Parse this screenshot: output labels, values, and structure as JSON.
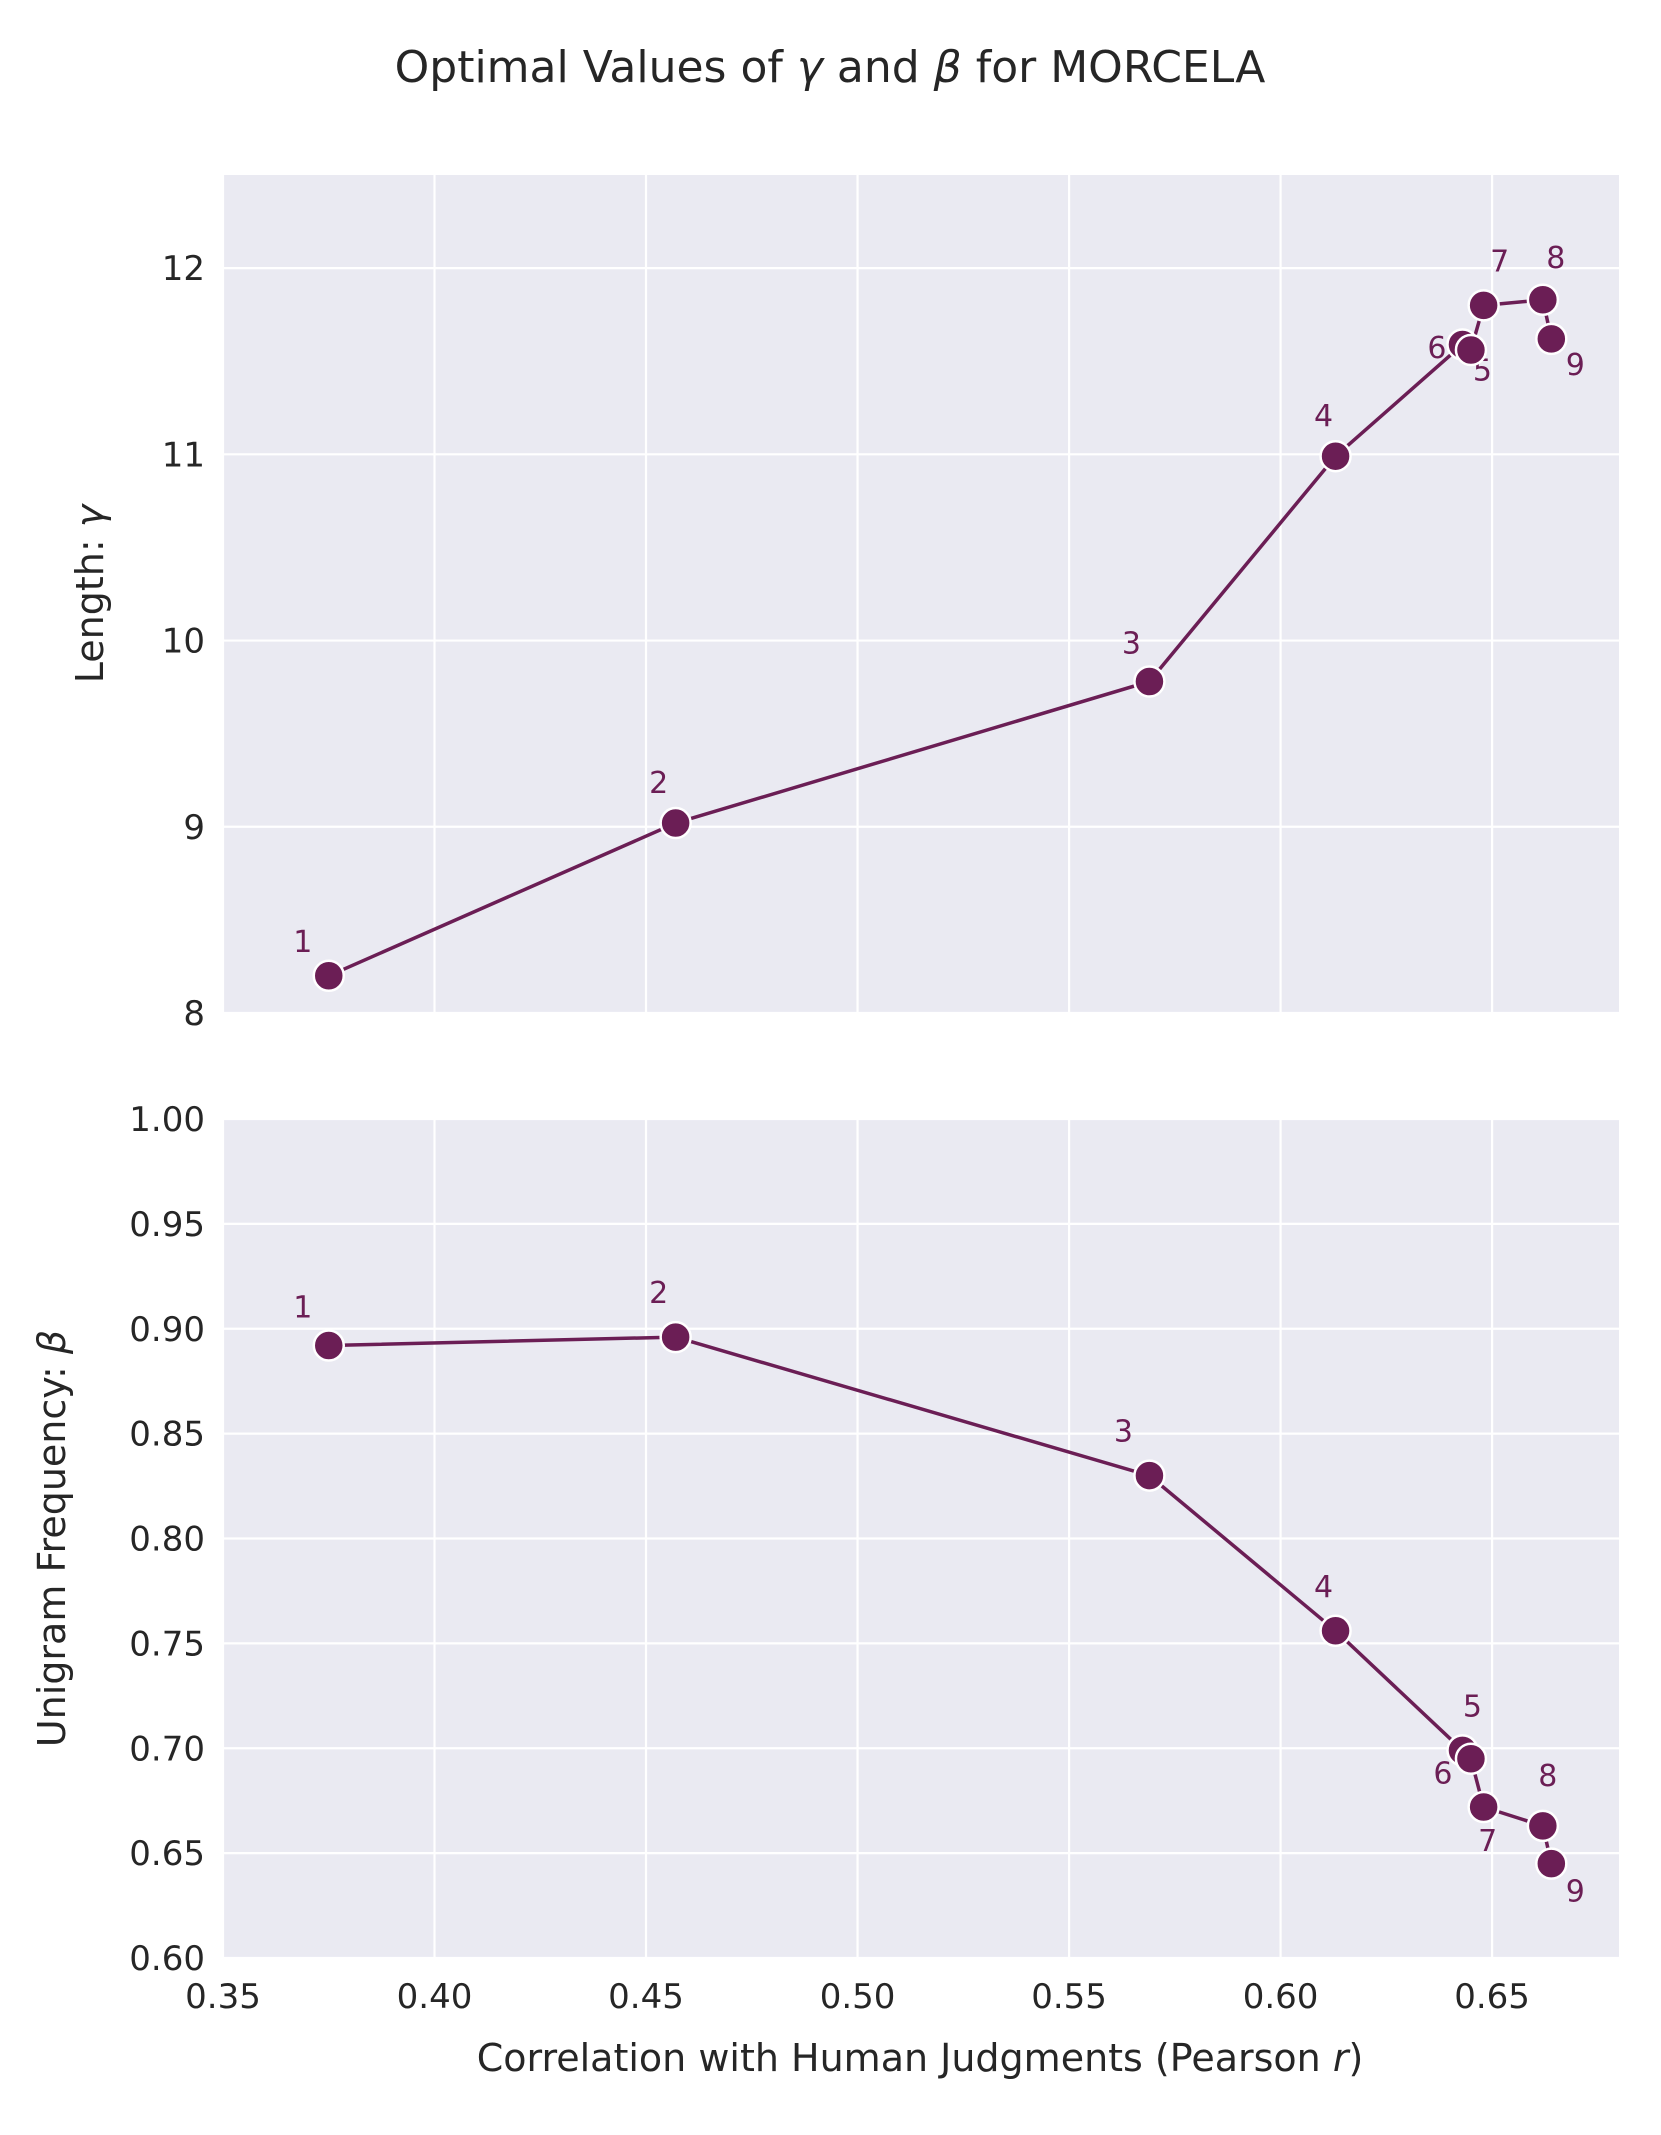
{
  "colors": {
    "series": "#6b1e55",
    "panel": "#eaeaf2",
    "grid": "#ffffff",
    "text": "#262626"
  },
  "chart_data": {
    "type": "line",
    "title_parts": [
      "Optimal Values of ",
      "γ",
      " and ",
      "β",
      " for MORCELA"
    ],
    "grid": true,
    "xlabel_parts": [
      "Correlation with Human Judgments (Pearson ",
      "r",
      ")"
    ],
    "xlim": [
      0.35,
      0.68
    ],
    "x_ticks": [
      "0.35",
      "0.40",
      "0.45",
      "0.50",
      "0.55",
      "0.60",
      "0.65"
    ],
    "x": [
      0.375,
      0.457,
      0.569,
      0.613,
      0.643,
      0.645,
      0.648,
      0.662,
      0.664
    ],
    "labels": [
      "1",
      "2",
      "3",
      "4",
      "5",
      "6",
      "7",
      "8",
      "9"
    ],
    "panels": [
      {
        "ylabel_parts": [
          "Length: ",
          "γ"
        ],
        "ylim": [
          8,
          12.5
        ],
        "y_ticks": [
          "8",
          "9",
          "10",
          "11",
          "12"
        ],
        "y": [
          8.2,
          9.02,
          9.78,
          10.99,
          11.59,
          11.56,
          11.8,
          11.83,
          11.62
        ]
      },
      {
        "ylabel_parts": [
          "Unigram Frequency: ",
          "β"
        ],
        "ylim": [
          0.6,
          1.0
        ],
        "y_ticks": [
          "0.60",
          "0.65",
          "0.70",
          "0.75",
          "0.80",
          "0.85",
          "0.90",
          "0.95",
          "1.00"
        ],
        "y": [
          0.892,
          0.896,
          0.83,
          0.756,
          0.699,
          0.695,
          0.672,
          0.663,
          0.645
        ]
      }
    ]
  }
}
